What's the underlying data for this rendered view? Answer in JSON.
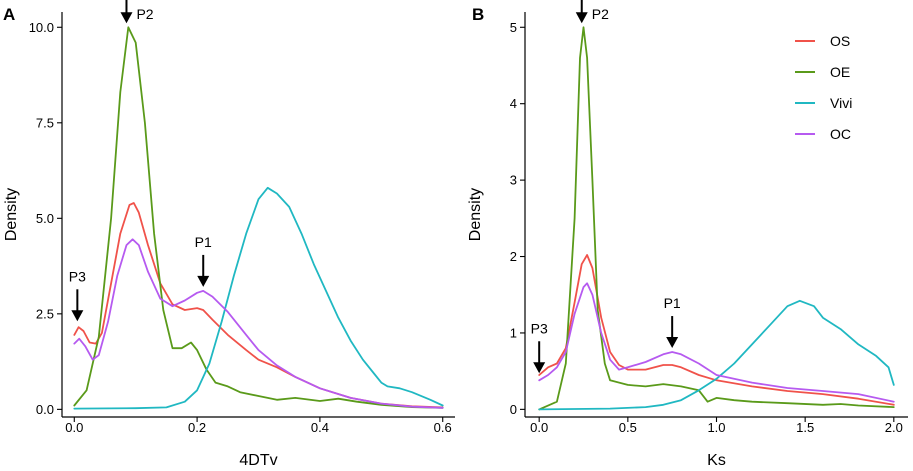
{
  "figure": {
    "legend_position": "top-right of panel B"
  },
  "colors": {
    "OS": "#f0524a",
    "OE": "#5a9a1a",
    "Vivi": "#20b8c2",
    "OC": "#b65af0"
  },
  "chart_data": [
    {
      "type": "line",
      "panel": "A",
      "xlabel": "4DTv",
      "ylabel": "Density",
      "xlim": [
        -0.02,
        0.62
      ],
      "ylim": [
        -0.2,
        10.4
      ],
      "xticks": [
        0.0,
        0.2,
        0.4,
        0.6
      ],
      "xtick_labels": [
        "0.0",
        "0.2",
        "0.4",
        "0.6"
      ],
      "yticks": [
        0.0,
        2.5,
        5.0,
        7.5,
        10.0
      ],
      "ytick_labels": [
        "0.0",
        "2.5",
        "5.0",
        "7.5",
        "10.0"
      ],
      "annotations": [
        {
          "label": "P2",
          "x": 0.085,
          "y": 10.0
        },
        {
          "label": "P1",
          "x": 0.21,
          "y": 3.1
        },
        {
          "label": "P3",
          "x": 0.005,
          "y": 2.2
        }
      ],
      "series": [
        {
          "name": "OS",
          "color_key": "OS",
          "points": [
            [
              0.0,
              1.95
            ],
            [
              0.007,
              2.15
            ],
            [
              0.015,
              2.05
            ],
            [
              0.025,
              1.75
            ],
            [
              0.035,
              1.72
            ],
            [
              0.045,
              2.0
            ],
            [
              0.06,
              3.3
            ],
            [
              0.075,
              4.6
            ],
            [
              0.09,
              5.35
            ],
            [
              0.097,
              5.4
            ],
            [
              0.105,
              5.15
            ],
            [
              0.12,
              4.3
            ],
            [
              0.14,
              3.3
            ],
            [
              0.16,
              2.75
            ],
            [
              0.18,
              2.6
            ],
            [
              0.2,
              2.65
            ],
            [
              0.21,
              2.6
            ],
            [
              0.225,
              2.35
            ],
            [
              0.25,
              1.95
            ],
            [
              0.28,
              1.55
            ],
            [
              0.3,
              1.3
            ],
            [
              0.33,
              1.1
            ],
            [
              0.36,
              0.85
            ],
            [
              0.4,
              0.55
            ],
            [
              0.45,
              0.3
            ],
            [
              0.5,
              0.15
            ],
            [
              0.55,
              0.08
            ],
            [
              0.6,
              0.05
            ]
          ]
        },
        {
          "name": "OE",
          "color_key": "OE",
          "points": [
            [
              0.0,
              0.1
            ],
            [
              0.02,
              0.5
            ],
            [
              0.04,
              1.9
            ],
            [
              0.06,
              5.0
            ],
            [
              0.075,
              8.3
            ],
            [
              0.088,
              10.0
            ],
            [
              0.1,
              9.6
            ],
            [
              0.115,
              7.5
            ],
            [
              0.13,
              4.6
            ],
            [
              0.145,
              2.6
            ],
            [
              0.16,
              1.6
            ],
            [
              0.175,
              1.6
            ],
            [
              0.19,
              1.75
            ],
            [
              0.2,
              1.55
            ],
            [
              0.215,
              1.05
            ],
            [
              0.23,
              0.7
            ],
            [
              0.25,
              0.6
            ],
            [
              0.27,
              0.45
            ],
            [
              0.3,
              0.35
            ],
            [
              0.33,
              0.25
            ],
            [
              0.36,
              0.3
            ],
            [
              0.4,
              0.22
            ],
            [
              0.43,
              0.28
            ],
            [
              0.46,
              0.2
            ],
            [
              0.5,
              0.12
            ],
            [
              0.55,
              0.06
            ],
            [
              0.6,
              0.04
            ]
          ]
        },
        {
          "name": "Vivi",
          "color_key": "Vivi",
          "points": [
            [
              0.0,
              0.02
            ],
            [
              0.1,
              0.03
            ],
            [
              0.15,
              0.05
            ],
            [
              0.18,
              0.2
            ],
            [
              0.2,
              0.5
            ],
            [
              0.22,
              1.2
            ],
            [
              0.24,
              2.3
            ],
            [
              0.26,
              3.5
            ],
            [
              0.28,
              4.6
            ],
            [
              0.3,
              5.5
            ],
            [
              0.315,
              5.8
            ],
            [
              0.33,
              5.65
            ],
            [
              0.35,
              5.3
            ],
            [
              0.37,
              4.6
            ],
            [
              0.39,
              3.8
            ],
            [
              0.41,
              3.1
            ],
            [
              0.43,
              2.4
            ],
            [
              0.45,
              1.8
            ],
            [
              0.47,
              1.3
            ],
            [
              0.49,
              0.9
            ],
            [
              0.5,
              0.7
            ],
            [
              0.51,
              0.6
            ],
            [
              0.53,
              0.55
            ],
            [
              0.55,
              0.45
            ],
            [
              0.58,
              0.25
            ],
            [
              0.6,
              0.1
            ]
          ]
        },
        {
          "name": "OC",
          "color_key": "OC",
          "points": [
            [
              0.0,
              1.72
            ],
            [
              0.008,
              1.85
            ],
            [
              0.018,
              1.65
            ],
            [
              0.03,
              1.3
            ],
            [
              0.04,
              1.42
            ],
            [
              0.055,
              2.3
            ],
            [
              0.07,
              3.5
            ],
            [
              0.085,
              4.3
            ],
            [
              0.095,
              4.45
            ],
            [
              0.105,
              4.3
            ],
            [
              0.12,
              3.6
            ],
            [
              0.14,
              2.9
            ],
            [
              0.16,
              2.7
            ],
            [
              0.18,
              2.85
            ],
            [
              0.2,
              3.05
            ],
            [
              0.21,
              3.1
            ],
            [
              0.225,
              2.95
            ],
            [
              0.25,
              2.55
            ],
            [
              0.28,
              1.95
            ],
            [
              0.3,
              1.55
            ],
            [
              0.33,
              1.15
            ],
            [
              0.36,
              0.85
            ],
            [
              0.4,
              0.55
            ],
            [
              0.45,
              0.3
            ],
            [
              0.5,
              0.15
            ],
            [
              0.55,
              0.07
            ],
            [
              0.6,
              0.04
            ]
          ]
        }
      ]
    },
    {
      "type": "line",
      "panel": "B",
      "xlabel": "Ks",
      "ylabel": "Density",
      "xlim": [
        -0.08,
        2.08
      ],
      "ylim": [
        -0.1,
        5.2
      ],
      "xticks": [
        0.0,
        0.5,
        1.0,
        1.5,
        2.0
      ],
      "xtick_labels": [
        "0.0",
        "0.5",
        "1.0",
        "1.5",
        "2.0"
      ],
      "yticks": [
        0,
        1,
        2,
        3,
        4,
        5
      ],
      "ytick_labels": [
        "0",
        "1",
        "2",
        "3",
        "4",
        "5"
      ],
      "annotations": [
        {
          "label": "P2",
          "x": 0.24,
          "y": 5.0
        },
        {
          "label": "P1",
          "x": 0.75,
          "y": 0.75
        },
        {
          "label": "P3",
          "x": 0.0,
          "y": 0.42
        }
      ],
      "legend": [
        "OS",
        "OE",
        "Vivi",
        "OC"
      ],
      "series": [
        {
          "name": "OS",
          "color_key": "OS",
          "points": [
            [
              0.0,
              0.45
            ],
            [
              0.05,
              0.55
            ],
            [
              0.1,
              0.6
            ],
            [
              0.15,
              0.8
            ],
            [
              0.2,
              1.4
            ],
            [
              0.24,
              1.9
            ],
            [
              0.27,
              2.02
            ],
            [
              0.3,
              1.85
            ],
            [
              0.35,
              1.2
            ],
            [
              0.4,
              0.75
            ],
            [
              0.45,
              0.58
            ],
            [
              0.5,
              0.52
            ],
            [
              0.6,
              0.52
            ],
            [
              0.7,
              0.58
            ],
            [
              0.75,
              0.58
            ],
            [
              0.8,
              0.55
            ],
            [
              0.9,
              0.45
            ],
            [
              1.0,
              0.38
            ],
            [
              1.2,
              0.3
            ],
            [
              1.4,
              0.24
            ],
            [
              1.6,
              0.2
            ],
            [
              1.8,
              0.14
            ],
            [
              2.0,
              0.06
            ]
          ]
        },
        {
          "name": "OE",
          "color_key": "OE",
          "points": [
            [
              0.0,
              0.0
            ],
            [
              0.1,
              0.1
            ],
            [
              0.15,
              0.6
            ],
            [
              0.2,
              2.5
            ],
            [
              0.23,
              4.6
            ],
            [
              0.25,
              5.0
            ],
            [
              0.27,
              4.6
            ],
            [
              0.3,
              3.0
            ],
            [
              0.33,
              1.3
            ],
            [
              0.37,
              0.6
            ],
            [
              0.4,
              0.38
            ],
            [
              0.5,
              0.32
            ],
            [
              0.6,
              0.3
            ],
            [
              0.7,
              0.33
            ],
            [
              0.8,
              0.3
            ],
            [
              0.9,
              0.25
            ],
            [
              0.95,
              0.1
            ],
            [
              1.0,
              0.15
            ],
            [
              1.1,
              0.12
            ],
            [
              1.2,
              0.1
            ],
            [
              1.4,
              0.08
            ],
            [
              1.6,
              0.06
            ],
            [
              1.7,
              0.07
            ],
            [
              1.8,
              0.05
            ],
            [
              2.0,
              0.03
            ]
          ]
        },
        {
          "name": "Vivi",
          "color_key": "Vivi",
          "points": [
            [
              0.0,
              0.0
            ],
            [
              0.4,
              0.01
            ],
            [
              0.6,
              0.03
            ],
            [
              0.7,
              0.06
            ],
            [
              0.8,
              0.12
            ],
            [
              0.9,
              0.25
            ],
            [
              1.0,
              0.4
            ],
            [
              1.1,
              0.6
            ],
            [
              1.2,
              0.85
            ],
            [
              1.3,
              1.1
            ],
            [
              1.4,
              1.35
            ],
            [
              1.47,
              1.42
            ],
            [
              1.55,
              1.35
            ],
            [
              1.6,
              1.2
            ],
            [
              1.7,
              1.05
            ],
            [
              1.8,
              0.85
            ],
            [
              1.9,
              0.7
            ],
            [
              1.97,
              0.55
            ],
            [
              2.0,
              0.32
            ]
          ]
        },
        {
          "name": "OC",
          "color_key": "OC",
          "points": [
            [
              0.0,
              0.38
            ],
            [
              0.05,
              0.45
            ],
            [
              0.1,
              0.55
            ],
            [
              0.15,
              0.75
            ],
            [
              0.2,
              1.25
            ],
            [
              0.25,
              1.6
            ],
            [
              0.27,
              1.65
            ],
            [
              0.3,
              1.5
            ],
            [
              0.35,
              1.0
            ],
            [
              0.4,
              0.65
            ],
            [
              0.45,
              0.52
            ],
            [
              0.5,
              0.55
            ],
            [
              0.6,
              0.62
            ],
            [
              0.7,
              0.72
            ],
            [
              0.75,
              0.75
            ],
            [
              0.8,
              0.72
            ],
            [
              0.9,
              0.6
            ],
            [
              1.0,
              0.45
            ],
            [
              1.2,
              0.35
            ],
            [
              1.4,
              0.28
            ],
            [
              1.6,
              0.24
            ],
            [
              1.8,
              0.2
            ],
            [
              2.0,
              0.1
            ]
          ]
        }
      ]
    }
  ]
}
